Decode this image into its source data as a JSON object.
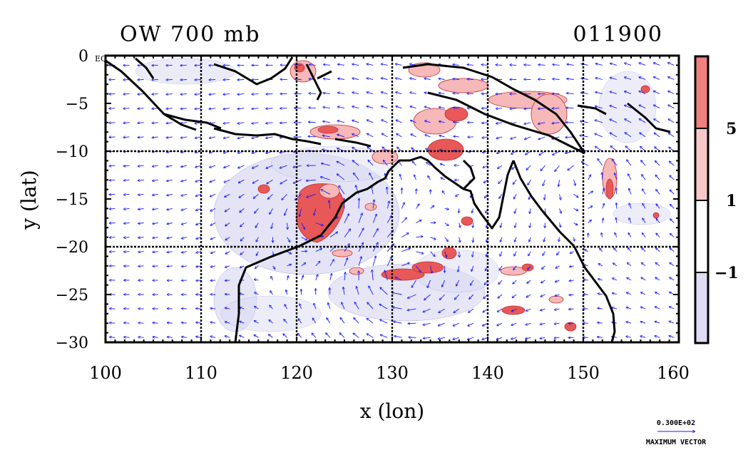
{
  "title_left": "OW 700 mb",
  "title_right": "011900",
  "equator_label": "EQ",
  "axes": {
    "xlabel": "x (lon)",
    "ylabel": "y (lat)",
    "xlim": [
      100,
      160
    ],
    "ylim": [
      -30,
      0
    ],
    "xticks": [
      "100",
      "110",
      "120",
      "130",
      "140",
      "150",
      "160"
    ],
    "yticks": [
      "0",
      "−5",
      "−10",
      "−15",
      "−20",
      "−25",
      "−30"
    ],
    "dashed_grid_lon": [
      110,
      120,
      130,
      140,
      150
    ],
    "dashed_grid_lat": [
      -10,
      -20
    ]
  },
  "colorbar": {
    "labels": [
      "5",
      "1",
      "−1"
    ],
    "bands": [
      {
        "color": "#f08080"
      },
      {
        "color": "#f8c8c8"
      },
      {
        "color": "#ffffff"
      },
      {
        "color": "#dcdcf4"
      }
    ]
  },
  "vector_key": {
    "value": "0.300E+02",
    "label": "MAXIMUM VECTOR",
    "color": "#1a1aff"
  },
  "colors": {
    "positive_strong": "#e85858",
    "positive_weak": "#f6b8b8",
    "negative": "#dcdcf4",
    "vectors": "#1a1aff",
    "coast": "#000000"
  }
}
